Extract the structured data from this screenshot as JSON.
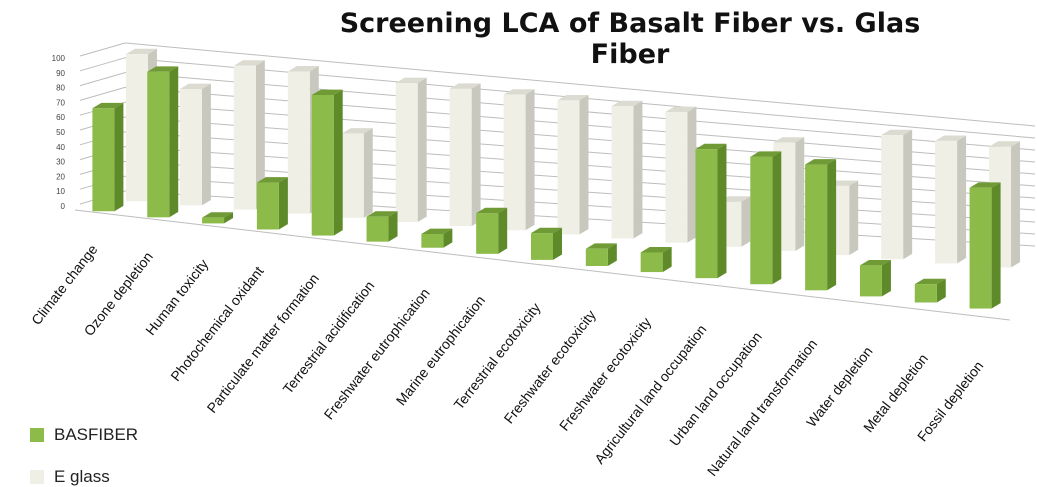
{
  "colors": {
    "basfiber_front": "#8dbb4a",
    "basfiber_side": "#5e8a2a",
    "basfiber_top": "#6f9a35",
    "eglass_front": "#f0efe6",
    "eglass_side": "#c9c8be",
    "eglass_top": "#dcdbd1",
    "grid": "#bdbdbd"
  },
  "chart_data": {
    "type": "bar",
    "title": "Screening LCA of Basalt Fiber vs. Glas Fiber",
    "categories": [
      "Climate change",
      "Ozone depletion",
      "Human toxicity",
      "Photochemical oxidant",
      "Particulate matter formation",
      "Terrestrial acidification",
      "Freshwater eutrophication",
      "Marine eutrophication",
      "Terrestrial ecotoxicity",
      "Freshwater ecotoxicity",
      "Freshwater ecotoxicity",
      "Agricultural land occupation",
      "Urban land occupation",
      "Natural land transformation",
      "Water depletion",
      "Metal depletion",
      "Fossil depletion"
    ],
    "series": [
      {
        "name": "BASFIBER",
        "values": [
          70,
          100,
          4,
          33,
          100,
          18,
          10,
          30,
          20,
          13,
          15,
          100,
          100,
          100,
          25,
          15,
          100
        ]
      },
      {
        "name": "E glass",
        "values": [
          100,
          80,
          100,
          100,
          60,
          100,
          100,
          100,
          100,
          100,
          100,
          35,
          85,
          55,
          100,
          100,
          100
        ]
      }
    ],
    "yticks": [
      "0",
      "10",
      "20",
      "30",
      "40",
      "50",
      "60",
      "70",
      "80",
      "90",
      "100"
    ],
    "ylim": [
      0,
      100
    ],
    "legend_position": "bottom-left"
  }
}
